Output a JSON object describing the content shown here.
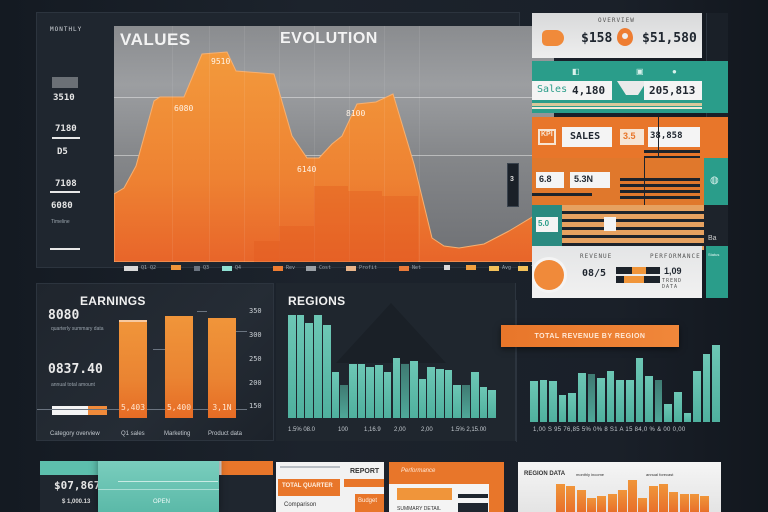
{
  "main_chart": {
    "title_left": "VALUES",
    "title_right": "EVOLUTION",
    "header_tag": "MONTHLY",
    "y_ticks": [
      "3510",
      "7180",
      "D5",
      "7108",
      "6080"
    ],
    "y_note": "Timeline",
    "peak_labels": [
      "9510",
      "6080",
      "8100",
      "6140"
    ],
    "legend": [
      {
        "color": "#d9d9d9",
        "label": "Q1 Q2"
      },
      {
        "color": "#f0953a",
        "label": ""
      },
      {
        "color": "#6b7480",
        "label": "Q3"
      },
      {
        "color": "#8fe0d2",
        "label": "Q4"
      },
      {
        "color": "#ee7d32",
        "label": "Rev"
      },
      {
        "color": "#9aa0a6",
        "label": "Cost"
      },
      {
        "color": "#e8b48a",
        "label": "Profit"
      },
      {
        "color": "#e87a3a",
        "label": "Net"
      },
      {
        "color": "#d9d9d9",
        "label": "Ind"
      },
      {
        "color": "#f0a040",
        "label": ""
      },
      {
        "color": "#f3c15a",
        "label": "Avg"
      },
      {
        "color": "#f3c15a",
        "label": "Total"
      }
    ],
    "side_tab_label": "3"
  },
  "kpi_cards": [
    {
      "header": "OVERVIEW",
      "value_left": "$158",
      "value_right": "$51,580",
      "icon": "location-pin-icon"
    },
    {
      "icons": [
        "chart-icon",
        "doc-icon",
        "info-icon"
      ],
      "label_left": "Sales",
      "value_left": "4,180",
      "value_right": "205,813"
    },
    {
      "badge": "KPI",
      "label": "SALES",
      "value_mid": "3.5",
      "value_right": "38,858"
    },
    {
      "value_left": "6.8",
      "value_mid": "5.3N",
      "side_icon": "globe-icon"
    },
    {
      "value_left": "5.0",
      "side_value": "Ba"
    },
    {
      "header_left": "REVENUE",
      "header_right": "PERFORMANCE",
      "value_left": "08/5",
      "value_right": "1,09",
      "footer_right": "TREND DATA",
      "tab_label": "Status"
    }
  ],
  "bar_chart_1": {
    "title": "EARNINGS",
    "stat_1": "8080",
    "stat_1_note": "quarterly summary data",
    "stat_2": "0837.40",
    "stat_2_note": "annual total amount",
    "right_ticks": [
      "350",
      "300",
      "250",
      "200",
      "150"
    ],
    "bars": [
      {
        "label": "5,403",
        "category": "Q1 sales"
      },
      {
        "label": "5,400",
        "category": "Marketing"
      },
      {
        "label": "3,1N",
        "category": "Product data"
      }
    ],
    "footer_left": "Category overview"
  },
  "bar_chart_2": {
    "title": "REGIONS",
    "x_labels": [
      "1.5% 08.0",
      "100",
      "1,16.9",
      "2,00",
      "2,00",
      "1.5% 2,15.00"
    ],
    "values": [
      100,
      100,
      92,
      100,
      90,
      45,
      32,
      52,
      52,
      50,
      51,
      45,
      58,
      52,
      55,
      38,
      50,
      48,
      47,
      32,
      32,
      45,
      30,
      27
    ]
  },
  "bar_chart_3": {
    "banner": "TOTAL REVENUE BY REGION",
    "x_labels": "1,00 S 95 76,85 5% 0% 8 S1 A 15 84,0 % & 00 0,00",
    "values": [
      37,
      38,
      37,
      25,
      26,
      45,
      44,
      40,
      46,
      38,
      38,
      58,
      42,
      38,
      16,
      27,
      8,
      46,
      62,
      70
    ]
  },
  "bottom_cards": {
    "card_1": {
      "value": "$07,867",
      "sub": "$ 1,000.13",
      "inner": "OPEN"
    },
    "card_2": {
      "title": "REPORT",
      "tag": "TOTAL QUARTER",
      "note": "Comparison",
      "side": "Budget"
    },
    "card_3": {
      "title": "Performance",
      "note": "SUMMARY DETAIL"
    },
    "card_4": {
      "title": "REGION DATA",
      "col_a": "monthly income",
      "col_b": "annual forecast"
    }
  }
}
